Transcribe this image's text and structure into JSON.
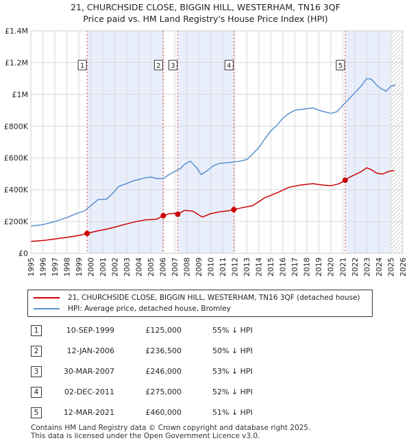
{
  "title_line1": "21, CHURCHSIDE CLOSE, BIGGIN HILL, WESTERHAM, TN16 3QF",
  "title_line2": "Price paid vs. HM Land Registry's House Price Index (HPI)",
  "colors": {
    "property": "#cc0000",
    "hpi": "#5b8fd0",
    "shade": "#e8eefb",
    "vline": "#dd4444",
    "hatch": "#999999"
  },
  "chart_data": {
    "type": "line",
    "xlim": [
      1995,
      2026
    ],
    "ylim": [
      0,
      1400000
    ],
    "yticks": [
      0,
      200000,
      400000,
      600000,
      800000,
      1000000,
      1200000,
      1400000
    ],
    "ytick_labels": [
      "£0",
      "£200K",
      "£400K",
      "£600K",
      "£800K",
      "£1M",
      "£1.2M",
      "£1.4M"
    ],
    "xticks": [
      1995,
      1996,
      1997,
      1998,
      1999,
      2000,
      2001,
      2002,
      2003,
      2004,
      2005,
      2006,
      2007,
      2008,
      2009,
      2010,
      2011,
      2012,
      2013,
      2014,
      2015,
      2016,
      2017,
      2018,
      2019,
      2020,
      2021,
      2022,
      2023,
      2024,
      2025,
      2026
    ],
    "forecast_from": 2025.0,
    "shaded_ranges": [
      [
        1999.69,
        2006.04
      ],
      [
        2007.25,
        2011.92
      ],
      [
        2021.2,
        2025.0
      ]
    ],
    "series": [
      {
        "name": "21, CHURCHSIDE CLOSE, BIGGIN HILL, WESTERHAM, TN16 3QF (detached house)",
        "color": "#cc0000",
        "x": [
          1995.0,
          1996.0,
          1997.0,
          1998.0,
          1999.0,
          1999.69,
          2000.5,
          2001.5,
          2002.5,
          2003.5,
          2004.5,
          2005.5,
          2006.04,
          2006.5,
          2007.0,
          2007.25,
          2007.8,
          2008.5,
          2009.3,
          2010.0,
          2010.8,
          2011.5,
          2011.92,
          2012.5,
          2013.5,
          2014.5,
          2015.5,
          2016.5,
          2017.5,
          2018.5,
          2019.3,
          2020.0,
          2020.7,
          2021.2,
          2021.6,
          2022.5,
          2023.0,
          2023.4,
          2023.8,
          2024.3,
          2024.8,
          2025.3
        ],
        "y": [
          75000,
          80000,
          90000,
          100000,
          112000,
          125000,
          140000,
          155000,
          175000,
          195000,
          210000,
          215000,
          236500,
          248000,
          252000,
          246000,
          270000,
          265000,
          228000,
          250000,
          262000,
          268000,
          275000,
          285000,
          300000,
          350000,
          380000,
          415000,
          430000,
          438000,
          430000,
          425000,
          438000,
          460000,
          480000,
          512000,
          538000,
          525000,
          505000,
          498000,
          515000,
          520000
        ]
      },
      {
        "name": "HPI: Average price, detached house, Bromley",
        "color": "#5b8fd0",
        "x": [
          1995.0,
          1996.0,
          1997.0,
          1998.0,
          1998.8,
          1999.5,
          2000.0,
          2000.6,
          2001.3,
          2001.8,
          2002.3,
          2003.0,
          2003.5,
          2004.0,
          2004.5,
          2005.0,
          2005.5,
          2006.04,
          2006.5,
          2007.0,
          2007.5,
          2007.8,
          2008.3,
          2008.8,
          2009.2,
          2009.7,
          2010.2,
          2010.7,
          2011.2,
          2011.7,
          2012.3,
          2013.0,
          2013.5,
          2014.0,
          2014.5,
          2015.0,
          2015.5,
          2016.0,
          2016.5,
          2017.0,
          2017.5,
          2018.0,
          2018.5,
          2019.0,
          2019.5,
          2020.0,
          2020.5,
          2021.0,
          2021.5,
          2022.0,
          2022.5,
          2023.0,
          2023.4,
          2023.8,
          2024.2,
          2024.6,
          2025.0,
          2025.4
        ],
        "y": [
          172000,
          180000,
          200000,
          225000,
          250000,
          268000,
          300000,
          338000,
          340000,
          375000,
          420000,
          440000,
          455000,
          465000,
          475000,
          480000,
          470000,
          470000,
          495000,
          515000,
          535000,
          560000,
          580000,
          540000,
          495000,
          520000,
          550000,
          565000,
          570000,
          572000,
          578000,
          590000,
          625000,
          665000,
          720000,
          770000,
          805000,
          850000,
          880000,
          900000,
          905000,
          910000,
          915000,
          900000,
          890000,
          880000,
          890000,
          930000,
          970000,
          1010000,
          1050000,
          1100000,
          1095000,
          1060000,
          1035000,
          1020000,
          1050000,
          1060000
        ]
      }
    ],
    "sales": [
      {
        "num": "1",
        "x": 1999.69,
        "y": 125000,
        "label_y": 1180000
      },
      {
        "num": "2",
        "x": 2006.04,
        "y": 236500,
        "label_y": 1180000
      },
      {
        "num": "3",
        "x": 2007.25,
        "y": 246000,
        "label_y": 1180000
      },
      {
        "num": "4",
        "x": 2011.92,
        "y": 275000,
        "label_y": 1180000
      },
      {
        "num": "5",
        "x": 2021.2,
        "y": 460000,
        "label_y": 1180000
      }
    ]
  },
  "legend": {
    "property_label": "21, CHURCHSIDE CLOSE, BIGGIN HILL, WESTERHAM, TN16 3QF (detached house)",
    "hpi_label": "HPI: Average price, detached house, Bromley"
  },
  "transactions": [
    {
      "num": "1",
      "date": "10-SEP-1999",
      "price": "£125,000",
      "hpi": "55% ↓ HPI"
    },
    {
      "num": "2",
      "date": "12-JAN-2006",
      "price": "£236,500",
      "hpi": "50% ↓ HPI"
    },
    {
      "num": "3",
      "date": "30-MAR-2007",
      "price": "£246,000",
      "hpi": "53% ↓ HPI"
    },
    {
      "num": "4",
      "date": "02-DEC-2011",
      "price": "£275,000",
      "hpi": "52% ↓ HPI"
    },
    {
      "num": "5",
      "date": "12-MAR-2021",
      "price": "£460,000",
      "hpi": "51% ↓ HPI"
    }
  ],
  "footer_line1": "Contains HM Land Registry data © Crown copyright and database right 2025.",
  "footer_line2": "This data is licensed under the Open Government Licence v3.0."
}
